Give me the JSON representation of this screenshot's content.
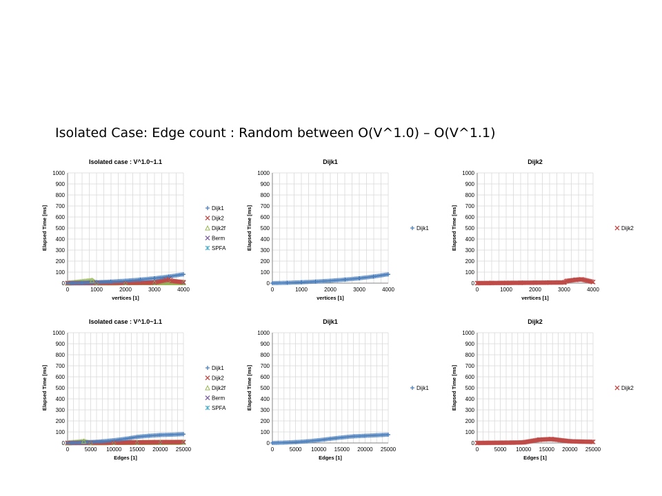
{
  "slide": {
    "title": "Isolated Case: Edge count : Random between O(V^1.0) – O(V^1.1)"
  },
  "colors": {
    "Dijk1": "#4a7ebb",
    "Dijk2": "#be4b48",
    "Dijk2f": "#98b954",
    "Berm": "#7d60a0",
    "SPFA": "#46aac5",
    "grid": "#d9d9d9",
    "axis": "#868686"
  },
  "chart_data": [
    {
      "id": "v-all",
      "type": "scatter",
      "title": "Isolated case : V^1.0~1.1",
      "xlabel": "vertices [1]",
      "ylabel": "Elapsed Time [ms]",
      "xlim": [
        0,
        4000
      ],
      "ylim": [
        0,
        1000
      ],
      "xticks": [
        "0",
        "1000",
        "2000",
        "3000",
        "4000"
      ],
      "yticks": [
        "0",
        "100",
        "200",
        "300",
        "400",
        "500",
        "600",
        "700",
        "800",
        "900",
        "1000"
      ],
      "grid": true,
      "legend": "right",
      "series": [
        {
          "name": "Dijk1",
          "marker": "plus",
          "x": [
            0,
            500,
            1000,
            1500,
            2000,
            2500,
            3000,
            3500,
            4000
          ],
          "y": [
            0,
            3,
            8,
            14,
            22,
            32,
            44,
            60,
            80
          ]
        },
        {
          "name": "Dijk2",
          "marker": "x",
          "x": [
            0,
            1000,
            2000,
            3000,
            3400,
            3500,
            3600,
            4000
          ],
          "y": [
            0,
            2,
            3,
            5,
            30,
            40,
            20,
            8
          ]
        },
        {
          "name": "Dijk2f",
          "marker": "triangle",
          "x": [
            0,
            850,
            1000,
            2000,
            3000,
            4000
          ],
          "y": [
            0,
            25,
            2,
            3,
            4,
            5
          ]
        },
        {
          "name": "Berm",
          "marker": "x",
          "x": [
            0,
            1000,
            2000,
            3000,
            4000
          ],
          "y": [
            0,
            1,
            2,
            3,
            4
          ]
        },
        {
          "name": "SPFA",
          "marker": "asterisk",
          "x": [
            0,
            1000,
            2000,
            3000,
            4000
          ],
          "y": [
            0,
            1,
            2,
            3,
            4
          ]
        }
      ]
    },
    {
      "id": "v-dijk1",
      "type": "scatter",
      "title": "Dijk1",
      "xlabel": "vertices [1]",
      "ylabel": "Elapsed Time [ms]",
      "xlim": [
        0,
        4000
      ],
      "ylim": [
        0,
        1000
      ],
      "xticks": [
        "0",
        "1000",
        "2000",
        "3000",
        "4000"
      ],
      "yticks": [
        "0",
        "100",
        "200",
        "300",
        "400",
        "500",
        "600",
        "700",
        "800",
        "900",
        "1000"
      ],
      "grid": true,
      "legend": "right",
      "series": [
        {
          "name": "Dijk1",
          "marker": "plus",
          "x": [
            0,
            500,
            1000,
            1500,
            2000,
            2500,
            3000,
            3500,
            4000
          ],
          "y": [
            0,
            3,
            8,
            14,
            22,
            32,
            44,
            60,
            80
          ]
        }
      ]
    },
    {
      "id": "v-dijk2",
      "type": "scatter",
      "title": "Dijk2",
      "xlabel": "vertices [1]",
      "ylabel": "Elapsed Time [ms]",
      "xlim": [
        0,
        4000
      ],
      "ylim": [
        0,
        1000
      ],
      "xticks": [
        "0",
        "1000",
        "2000",
        "3000",
        "4000"
      ],
      "yticks": [
        "0",
        "100",
        "200",
        "300",
        "400",
        "500",
        "600",
        "700",
        "800",
        "900",
        "1000"
      ],
      "grid": true,
      "legend": "right",
      "series": [
        {
          "name": "Dijk2",
          "marker": "x",
          "x": [
            0,
            500,
            1000,
            1500,
            2000,
            2500,
            3000,
            3100,
            3400,
            3600,
            4000
          ],
          "y": [
            0,
            1,
            2,
            3,
            4,
            5,
            6,
            20,
            30,
            35,
            10
          ]
        }
      ]
    },
    {
      "id": "e-all",
      "type": "scatter",
      "title": "Isolated case : V^1.0~1.1",
      "xlabel": "Edges [1]",
      "ylabel": "Elapsed Time [ms]",
      "xlim": [
        0,
        25000
      ],
      "ylim": [
        0,
        1000
      ],
      "xticks": [
        "0",
        "5000",
        "10000",
        "15000",
        "20000",
        "25000"
      ],
      "yticks": [
        "0",
        "100",
        "200",
        "300",
        "400",
        "500",
        "600",
        "700",
        "800",
        "900",
        "1000"
      ],
      "grid": true,
      "legend": "right",
      "series": [
        {
          "name": "Dijk1",
          "marker": "plus",
          "x": [
            0,
            2500,
            5000,
            7500,
            10000,
            12500,
            15000,
            17500,
            20000,
            22500,
            25000
          ],
          "y": [
            0,
            3,
            8,
            15,
            25,
            38,
            55,
            65,
            72,
            75,
            80
          ]
        },
        {
          "name": "Dijk2",
          "marker": "x",
          "x": [
            0,
            5000,
            10000,
            15000,
            20000,
            25000
          ],
          "y": [
            0,
            2,
            3,
            5,
            7,
            8
          ]
        },
        {
          "name": "Dijk2f",
          "marker": "triangle",
          "x": [
            0,
            3500,
            5000,
            10000,
            15000,
            20000,
            25000
          ],
          "y": [
            0,
            15,
            2,
            3,
            4,
            5,
            6
          ]
        },
        {
          "name": "Berm",
          "marker": "x",
          "x": [
            0,
            5000,
            10000,
            15000,
            20000,
            25000
          ],
          "y": [
            0,
            1,
            2,
            3,
            4,
            5
          ]
        },
        {
          "name": "SPFA",
          "marker": "asterisk",
          "x": [
            0,
            5000,
            10000,
            15000,
            20000,
            25000
          ],
          "y": [
            0,
            1,
            2,
            3,
            4,
            5
          ]
        }
      ]
    },
    {
      "id": "e-dijk1",
      "type": "scatter",
      "title": "Dijk1",
      "xlabel": "Edges [1]",
      "ylabel": "Elapsed Time [ms]",
      "xlim": [
        0,
        25000
      ],
      "ylim": [
        0,
        1000
      ],
      "xticks": [
        "0",
        "5000",
        "10000",
        "15000",
        "20000",
        "25000"
      ],
      "yticks": [
        "0",
        "100",
        "200",
        "300",
        "400",
        "500",
        "600",
        "700",
        "800",
        "900",
        "1000"
      ],
      "grid": true,
      "legend": "right",
      "series": [
        {
          "name": "Dijk1",
          "marker": "plus",
          "x": [
            0,
            2500,
            5000,
            7500,
            10000,
            12500,
            15000,
            17500,
            20000,
            22500,
            25000
          ],
          "y": [
            0,
            3,
            8,
            15,
            25,
            38,
            50,
            60,
            65,
            70,
            75
          ]
        }
      ]
    },
    {
      "id": "e-dijk2",
      "type": "scatter",
      "title": "Dijk2",
      "xlabel": "Edges [1]",
      "ylabel": "Elapsed Time [ms]",
      "xlim": [
        0,
        25000
      ],
      "ylim": [
        0,
        1000
      ],
      "xticks": [
        "0",
        "5000",
        "10000",
        "15000",
        "20000",
        "25000"
      ],
      "yticks": [
        "0",
        "100",
        "200",
        "300",
        "400",
        "500",
        "600",
        "700",
        "800",
        "900",
        "1000"
      ],
      "grid": true,
      "legend": "right",
      "series": [
        {
          "name": "Dijk2",
          "marker": "x",
          "x": [
            0,
            2500,
            5000,
            7500,
            10000,
            13500,
            16000,
            20000,
            22500,
            25000
          ],
          "y": [
            0,
            1,
            2,
            3,
            5,
            30,
            35,
            15,
            12,
            10
          ]
        }
      ]
    }
  ]
}
